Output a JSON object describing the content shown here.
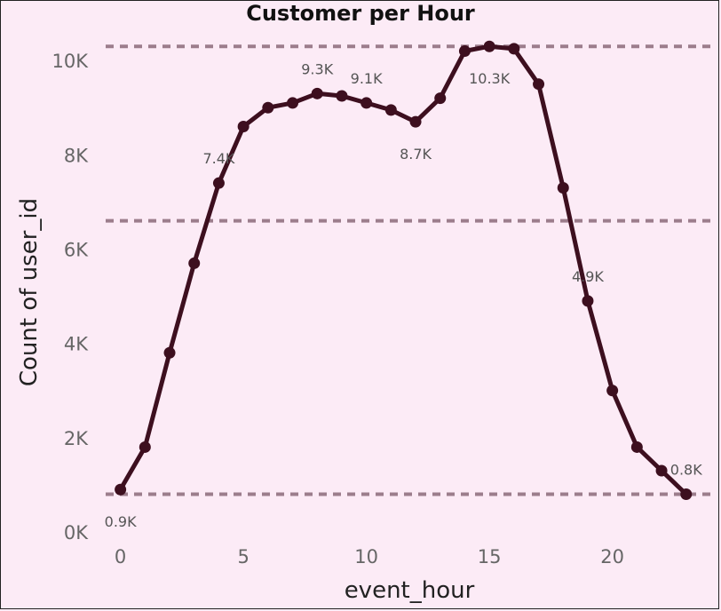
{
  "chart_data": {
    "type": "line",
    "title": "Customer per Hour",
    "xlabel": "event_hour",
    "ylabel": "Count of user_id",
    "x": [
      0,
      1,
      2,
      3,
      4,
      5,
      6,
      7,
      8,
      9,
      10,
      11,
      12,
      13,
      14,
      15,
      16,
      17,
      18,
      19,
      20,
      21,
      22,
      23
    ],
    "series": [
      {
        "values": [
          900,
          1800,
          3800,
          5700,
          7400,
          8600,
          9000,
          9100,
          9300,
          9250,
          9100,
          8950,
          8700,
          9200,
          10200,
          10300,
          10250,
          9500,
          7300,
          4900,
          3000,
          1800,
          1300,
          800
        ],
        "color": "#3d0f1f"
      }
    ],
    "xlim": [
      -0.6,
      24.2
    ],
    "ylim": [
      0,
      10700
    ],
    "x_ticks": [
      {
        "value": 0,
        "label": "0"
      },
      {
        "value": 5,
        "label": "5"
      },
      {
        "value": 10,
        "label": "10"
      },
      {
        "value": 15,
        "label": "15"
      },
      {
        "value": 20,
        "label": "20"
      }
    ],
    "y_ticks": [
      {
        "value": 0,
        "label": "0K"
      },
      {
        "value": 2000,
        "label": "2K"
      },
      {
        "value": 4000,
        "label": "4K"
      },
      {
        "value": 6000,
        "label": "6K"
      },
      {
        "value": 8000,
        "label": "8K"
      },
      {
        "value": 10000,
        "label": "10K"
      }
    ],
    "reference_lines": [
      {
        "value": 800,
        "color": "#9c7d8c"
      },
      {
        "value": 6600,
        "color": "#9c7d8c"
      },
      {
        "value": 10300,
        "color": "#9c7d8c"
      }
    ],
    "data_labels": [
      {
        "x": 0,
        "text": "0.9K",
        "position": "below"
      },
      {
        "x": 4,
        "text": "7.4K",
        "position": "above"
      },
      {
        "x": 8,
        "text": "9.3K",
        "position": "above"
      },
      {
        "x": 10,
        "text": "9.1K",
        "position": "above"
      },
      {
        "x": 12,
        "text": "8.7K",
        "position": "below"
      },
      {
        "x": 15,
        "text": "10.3K",
        "position": "below"
      },
      {
        "x": 19,
        "text": "4.9K",
        "position": "above"
      },
      {
        "x": 23,
        "text": "0.8K",
        "position": "above"
      }
    ],
    "grid": false,
    "background": "#fcebf6"
  }
}
